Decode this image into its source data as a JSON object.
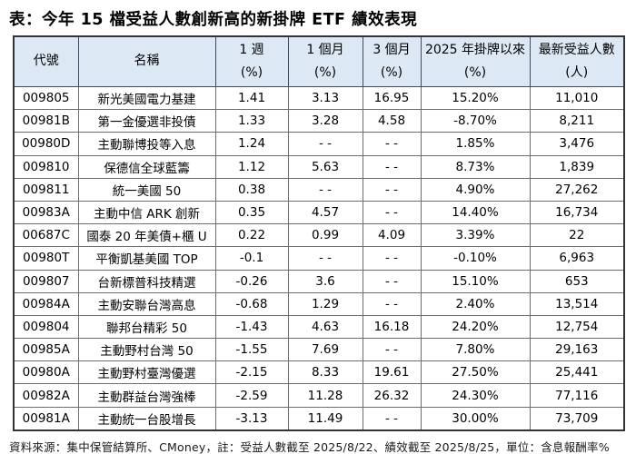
{
  "title": "表：今年 15 檔受益人數創新高的新掛牌 ETF 績效表現",
  "footer": "資料來源：集中保管結算所、CMoney，註：受益人數截至 2025/8/22、績效截至 2025/8/25，單位：含息報酬率%",
  "colors": {
    "header_bg": "#dce9f5",
    "outer_border": "#333333",
    "inner_border": "#6e6e6e",
    "header_border": "#3f4a5a",
    "text": "#000000"
  },
  "table": {
    "headers": [
      {
        "label": "代號",
        "unit": ""
      },
      {
        "label": "名稱",
        "unit": ""
      },
      {
        "label": "1 週",
        "unit": "(%)"
      },
      {
        "label": "1 個月",
        "unit": "(%)"
      },
      {
        "label": "3 個月",
        "unit": "(%)"
      },
      {
        "label": "2025 年掛牌以來",
        "unit": "(%)"
      },
      {
        "label": "最新受益人數",
        "unit": "(人)"
      }
    ],
    "empty_cell_marker": "- -"
  },
  "chart_data": {
    "type": "table",
    "title": "表：今年 15 檔受益人數創新高的新掛牌 ETF 績效表現",
    "columns": [
      "代號",
      "名稱",
      "1 週 (%)",
      "1 個月 (%)",
      "3 個月 (%)",
      "2025 年掛牌以來 (%)",
      "最新受益人數 (人)"
    ],
    "rows": [
      [
        "009805",
        "新光美國電力基建",
        "1.41",
        "3.13",
        "16.95",
        "15.20%",
        "11,010"
      ],
      [
        "00981B",
        "第一金優選非投債",
        "1.33",
        "3.28",
        "4.58",
        "-8.70%",
        "8,211"
      ],
      [
        "00980D",
        "主動聯博投等入息",
        "1.24",
        "- -",
        "- -",
        "1.85%",
        "3,476"
      ],
      [
        "009810",
        "保德信全球藍籌",
        "1.12",
        "5.63",
        "- -",
        "8.73%",
        "1,839"
      ],
      [
        "009811",
        "統一美國 50",
        "0.38",
        "- -",
        "- -",
        "4.90%",
        "27,262"
      ],
      [
        "00983A",
        "主動中信 ARK 創新",
        "0.35",
        "4.57",
        "- -",
        "14.40%",
        "16,734"
      ],
      [
        "00687C",
        "國泰 20 年美債+櫃 U",
        "0.22",
        "0.99",
        "4.09",
        "3.39%",
        "22"
      ],
      [
        "00980T",
        "平衡凱基美國 TOP",
        "-0.1",
        "- -",
        "- -",
        "-0.10%",
        "6,963"
      ],
      [
        "009807",
        "台新標普科技精選",
        "-0.26",
        "3.6",
        "- -",
        "15.10%",
        "653"
      ],
      [
        "00984A",
        "主動安聯台灣高息",
        "-0.68",
        "1.29",
        "- -",
        "2.40%",
        "13,514"
      ],
      [
        "009804",
        "聯邦台精彩 50",
        "-1.43",
        "4.63",
        "16.18",
        "24.20%",
        "12,754"
      ],
      [
        "00985A",
        "主動野村台灣 50",
        "-1.55",
        "7.69",
        "- -",
        "7.80%",
        "29,163"
      ],
      [
        "00980A",
        "主動野村臺灣優選",
        "-2.15",
        "8.33",
        "19.61",
        "27.50%",
        "25,441"
      ],
      [
        "00982A",
        "主動群益台灣強棒",
        "-2.59",
        "11.28",
        "26.32",
        "24.30%",
        "77,116"
      ],
      [
        "00981A",
        "主動統一台股增長",
        "-3.13",
        "11.49",
        "- -",
        "30.00%",
        "73,709"
      ]
    ]
  }
}
